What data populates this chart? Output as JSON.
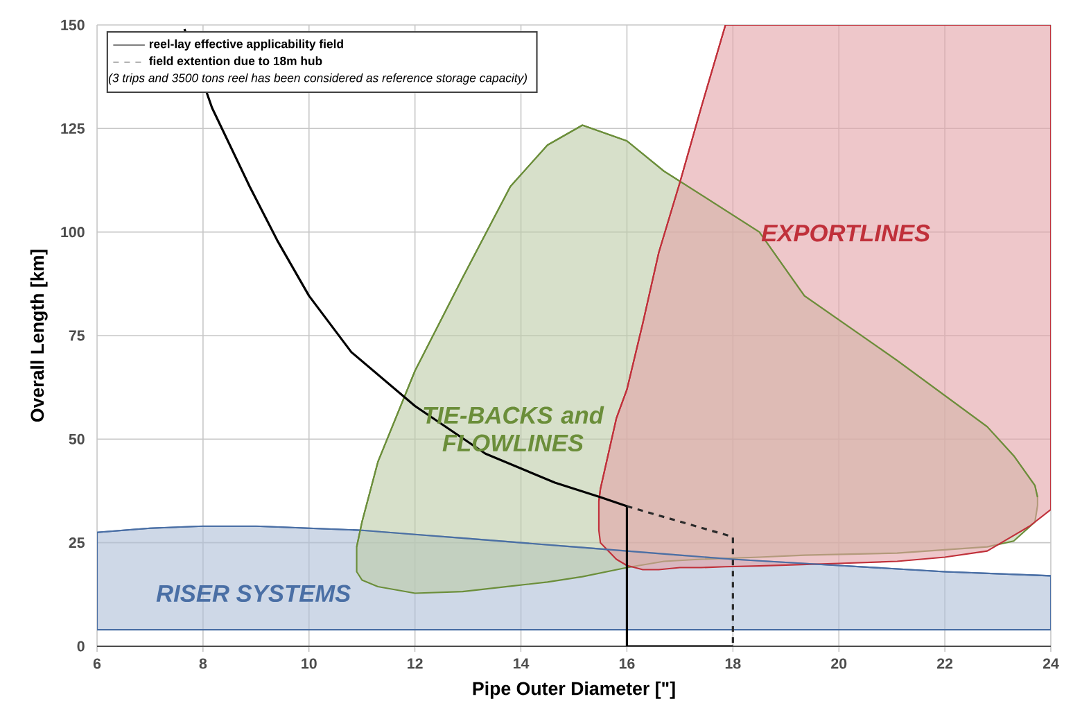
{
  "chart_data": {
    "type": "line",
    "xlabel": "Pipe Outer Diameter [\"]",
    "ylabel": "Overall Length [km]",
    "xlim": [
      6,
      24
    ],
    "ylim": [
      0,
      150
    ],
    "xticks": [
      6,
      8,
      10,
      12,
      14,
      16,
      18,
      20,
      22,
      24
    ],
    "yticks": [
      0,
      25,
      50,
      75,
      100,
      125,
      150
    ],
    "grid": true,
    "legend": "top left",
    "annotations": [
      "(3 trips and 3500 tons reel has been considered as reference storage capacity)"
    ],
    "series": [
      {
        "name": "RISER SYSTEMS",
        "color": "#4a6fa5",
        "x": [
          6,
          7,
          8,
          9,
          10,
          11,
          12,
          13,
          14,
          15,
          16,
          17,
          18,
          20,
          22,
          24
        ],
        "lower": [
          4,
          4,
          4,
          4,
          4,
          4,
          4,
          4,
          4,
          4,
          4,
          4,
          4,
          4,
          4,
          4
        ],
        "upper": [
          27.5,
          28.5,
          29,
          29,
          28.5,
          28,
          27,
          26,
          25,
          24,
          23,
          22,
          21,
          19.5,
          18,
          17
        ],
        "values": [
          27.5,
          28.5,
          29,
          29,
          28.5,
          28,
          27,
          26,
          25,
          24,
          23,
          22,
          21,
          19.5,
          18,
          17
        ]
      },
      {
        "name": "TIE-BACKS and FLOWLINES",
        "color": "#6b8e3a",
        "x": [
          10.9,
          11.0,
          11.3,
          12.0,
          12.9,
          13.8,
          14.5,
          15.16,
          16.0,
          16.7,
          17.4,
          18.5,
          19.35,
          21.1,
          22.8,
          23.3,
          23.7,
          23.75
        ],
        "lower": [
          18,
          16,
          14.4,
          12.8,
          13.2,
          14.5,
          15.5,
          16.8,
          19,
          20.5,
          21,
          21.5,
          22,
          22.5,
          24,
          25.4,
          30,
          34
        ],
        "upper": [
          24,
          30,
          44.5,
          66.5,
          89,
          111,
          121,
          125.8,
          122,
          114.7,
          109,
          100,
          84.6,
          69,
          53,
          46,
          38.8,
          36
        ],
        "values": [
          24,
          30,
          44.5,
          66.5,
          89,
          111,
          121,
          125.8,
          122,
          114.7,
          109,
          100,
          84.6,
          69,
          53,
          46,
          38.8,
          36
        ]
      },
      {
        "name": "EXPORTLINES",
        "color": "#c0303a",
        "x": [
          15.47,
          15.5,
          15.8,
          16.0,
          16.3,
          16.6,
          17.0,
          17.4,
          17.86,
          18.5,
          20.0,
          21.1,
          22.0,
          22.8,
          23.6,
          24.0
        ],
        "lower": [
          28,
          25,
          21,
          19.5,
          18.5,
          18.5,
          19,
          19,
          19.2,
          19.4,
          20,
          20.5,
          21.5,
          23,
          29,
          33
        ],
        "upper": [
          35,
          38,
          55,
          62,
          78,
          95,
          112,
          130,
          150,
          150,
          150,
          150,
          150,
          150,
          150,
          150
        ],
        "values": [
          35,
          38,
          55,
          62,
          78,
          95,
          112,
          130,
          150,
          150,
          150,
          150,
          150,
          150,
          150,
          150
        ]
      },
      {
        "name": "reel-lay effective applicability field",
        "color": "#000000",
        "line_style": "solid",
        "x": [
          7.65,
          8.17,
          8.88,
          9.4,
          10.0,
          10.8,
          12.0,
          13.33,
          14.64,
          15.5,
          16.0,
          16.0,
          18.0
        ],
        "values": [
          149,
          130,
          111,
          98,
          84.6,
          71,
          58,
          46.5,
          39.5,
          36,
          33.8,
          0,
          0
        ]
      },
      {
        "name": "field extention due to 18m hub",
        "color": "#2b2b2b",
        "line_style": "dashed",
        "x": [
          16.0,
          18.0,
          18.0
        ],
        "values": [
          33.8,
          26.4,
          0
        ]
      }
    ]
  }
}
